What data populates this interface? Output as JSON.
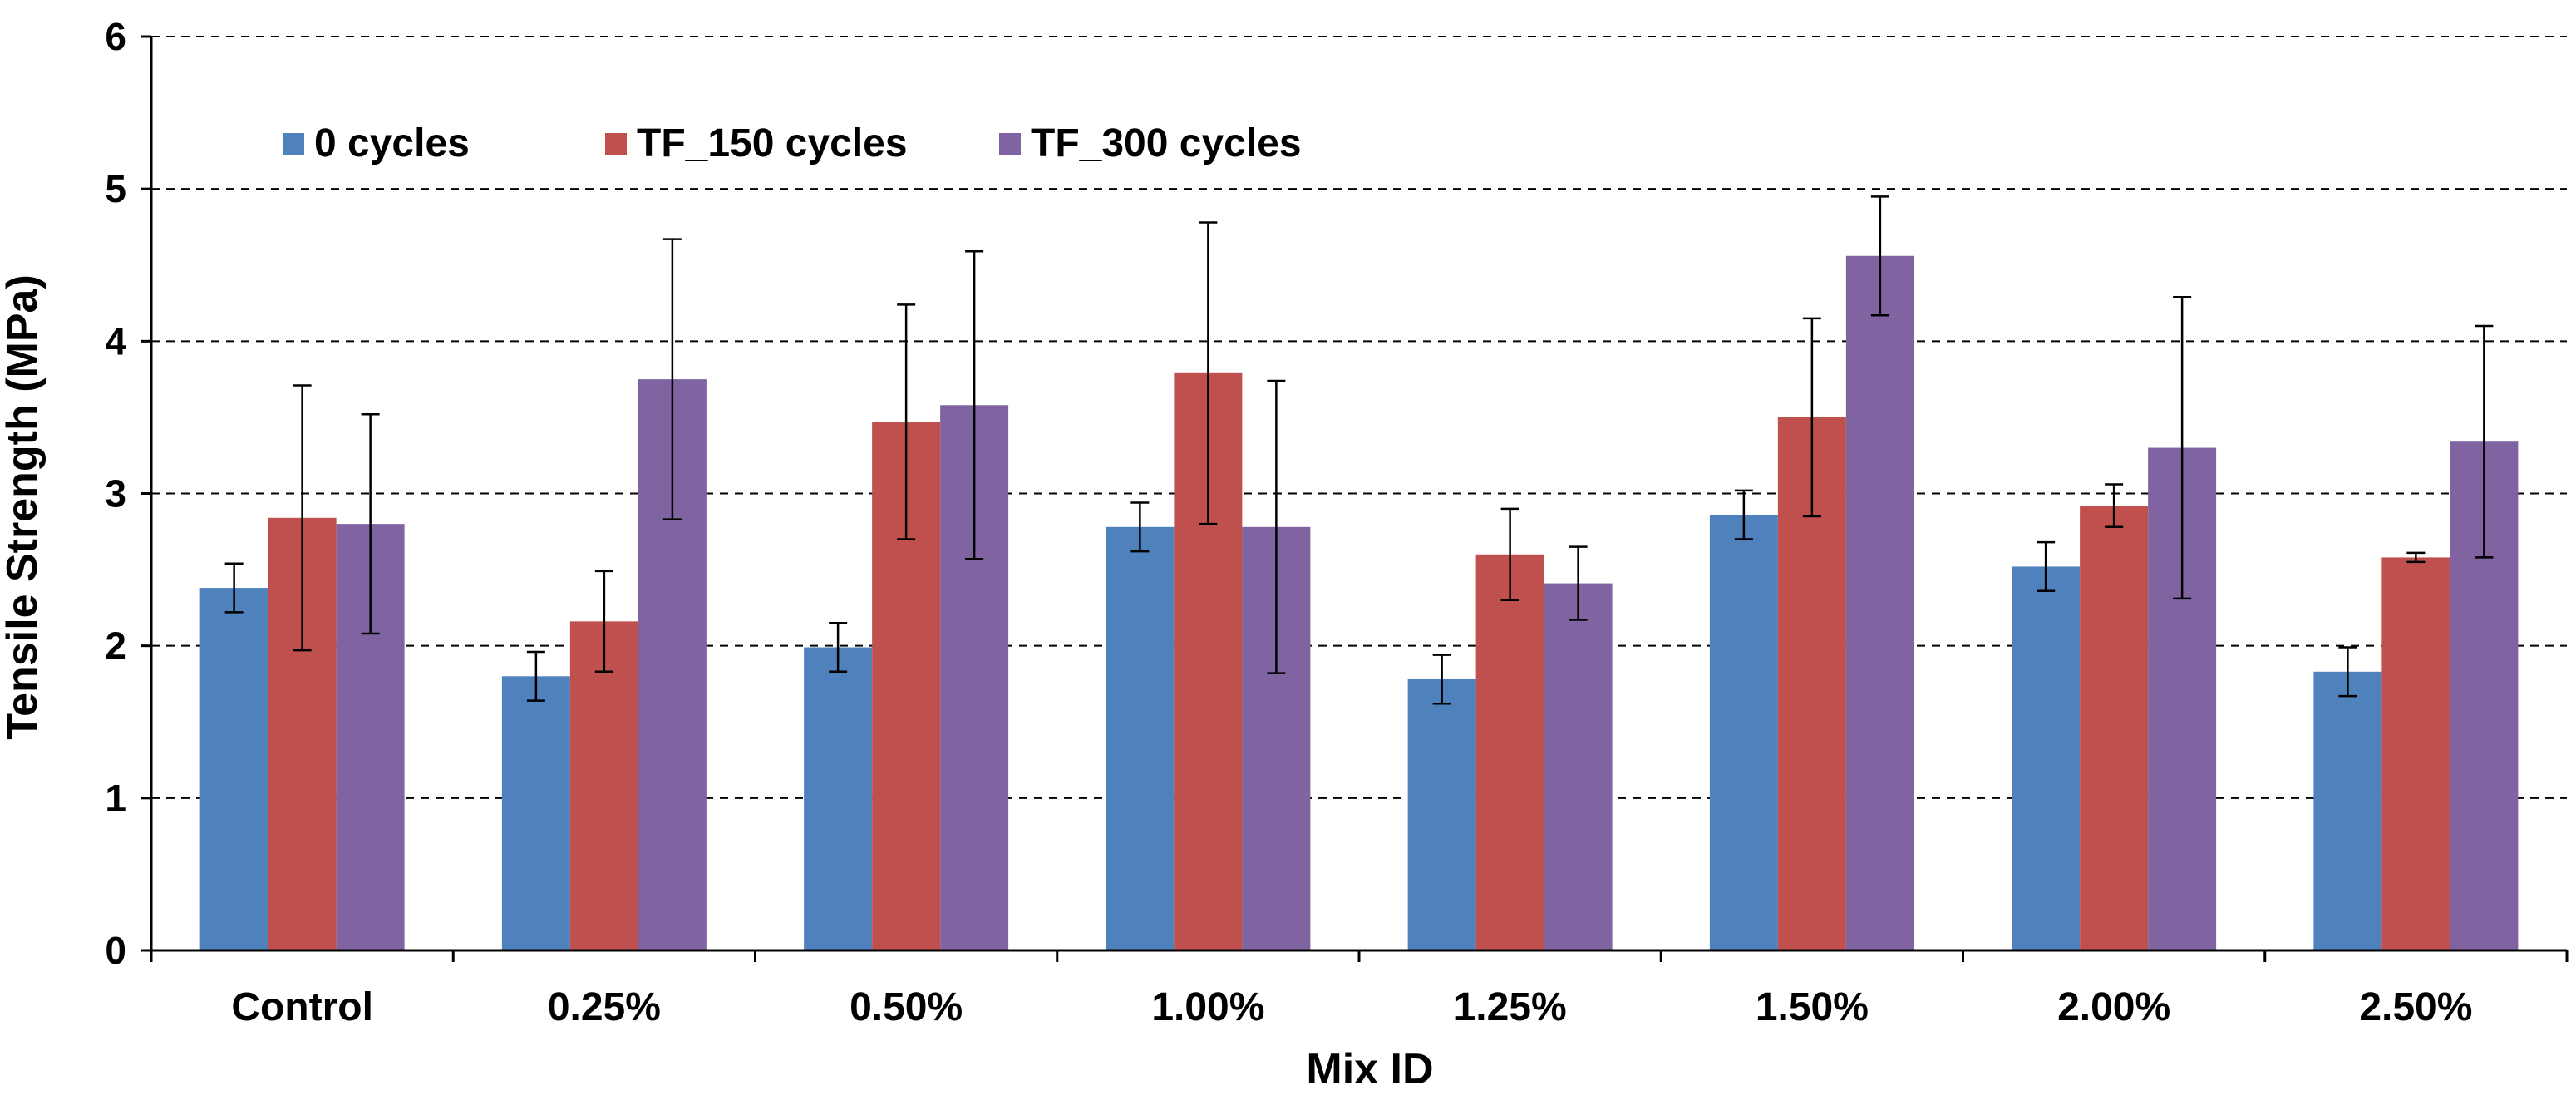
{
  "chart_data": {
    "type": "bar",
    "title": "",
    "xlabel": "Mix ID",
    "ylabel": "Tensile Strength (MPa)",
    "ylim": [
      0,
      6
    ],
    "yticks": [
      0,
      1,
      2,
      3,
      4,
      5,
      6
    ],
    "grid": true,
    "legend_position": "top-left",
    "categories": [
      "Control",
      "0.25%",
      "0.50%",
      "1.00%",
      "1.25%",
      "1.50%",
      "2.00%",
      "2.50%"
    ],
    "series": [
      {
        "name": "0 cycles",
        "color": "#4F81BD",
        "values": [
          2.38,
          1.8,
          1.99,
          2.78,
          1.78,
          2.86,
          2.52,
          1.83
        ],
        "error": [
          0.16,
          0.16,
          0.16,
          0.16,
          0.16,
          0.16,
          0.16,
          0.16
        ]
      },
      {
        "name": "TF_150 cycles",
        "color": "#C0504D",
        "values": [
          2.84,
          2.16,
          3.47,
          3.79,
          2.6,
          3.5,
          2.92,
          2.58
        ],
        "error": [
          0.87,
          0.33,
          0.77,
          0.99,
          0.3,
          0.65,
          0.14,
          0.03
        ]
      },
      {
        "name": "TF_300 cycles",
        "color": "#8064A2",
        "values": [
          2.8,
          3.75,
          3.58,
          2.78,
          2.41,
          4.56,
          3.3,
          3.34
        ],
        "error": [
          0.72,
          0.92,
          1.01,
          0.96,
          0.24,
          0.39,
          0.99,
          0.76
        ]
      }
    ]
  }
}
